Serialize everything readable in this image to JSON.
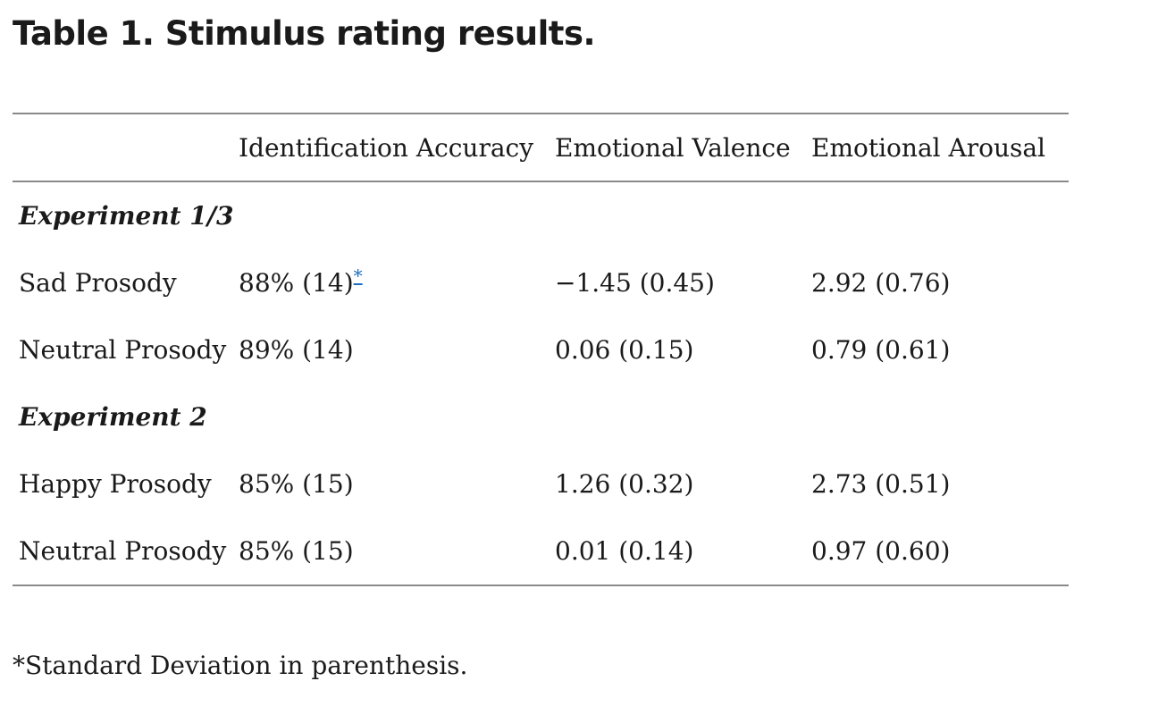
{
  "title": "Table 1. Stimulus rating results.",
  "table": {
    "headers": [
      "",
      "Identification Accuracy",
      "Emotional Valence",
      "Emotional Arousal"
    ],
    "sections": [
      {
        "label": "Experiment 1/3",
        "rows": [
          {
            "label": "Sad Prosody",
            "accuracy": "88% (14)",
            "accuracy_ref": "*",
            "valence": "−1.45 (0.45)",
            "arousal": "2.92 (0.76)"
          },
          {
            "label": "Neutral Prosody",
            "accuracy": "89% (14)",
            "valence": "0.06 (0.15)",
            "arousal": "0.79 (0.61)"
          }
        ]
      },
      {
        "label": "Experiment 2",
        "rows": [
          {
            "label": "Happy Prosody",
            "accuracy": "85% (15)",
            "valence": "1.26 (0.32)",
            "arousal": "2.73 (0.51)"
          },
          {
            "label": "Neutral Prosody",
            "accuracy": "85% (15)",
            "valence": "0.01 (0.14)",
            "arousal": "0.97 (0.60)"
          }
        ]
      }
    ]
  },
  "footnote": "*Standard Deviation in parenthesis.",
  "colors": {
    "text": "#1a1a1a",
    "rule": "#8a8a8a",
    "link": "#1a6ebd"
  }
}
